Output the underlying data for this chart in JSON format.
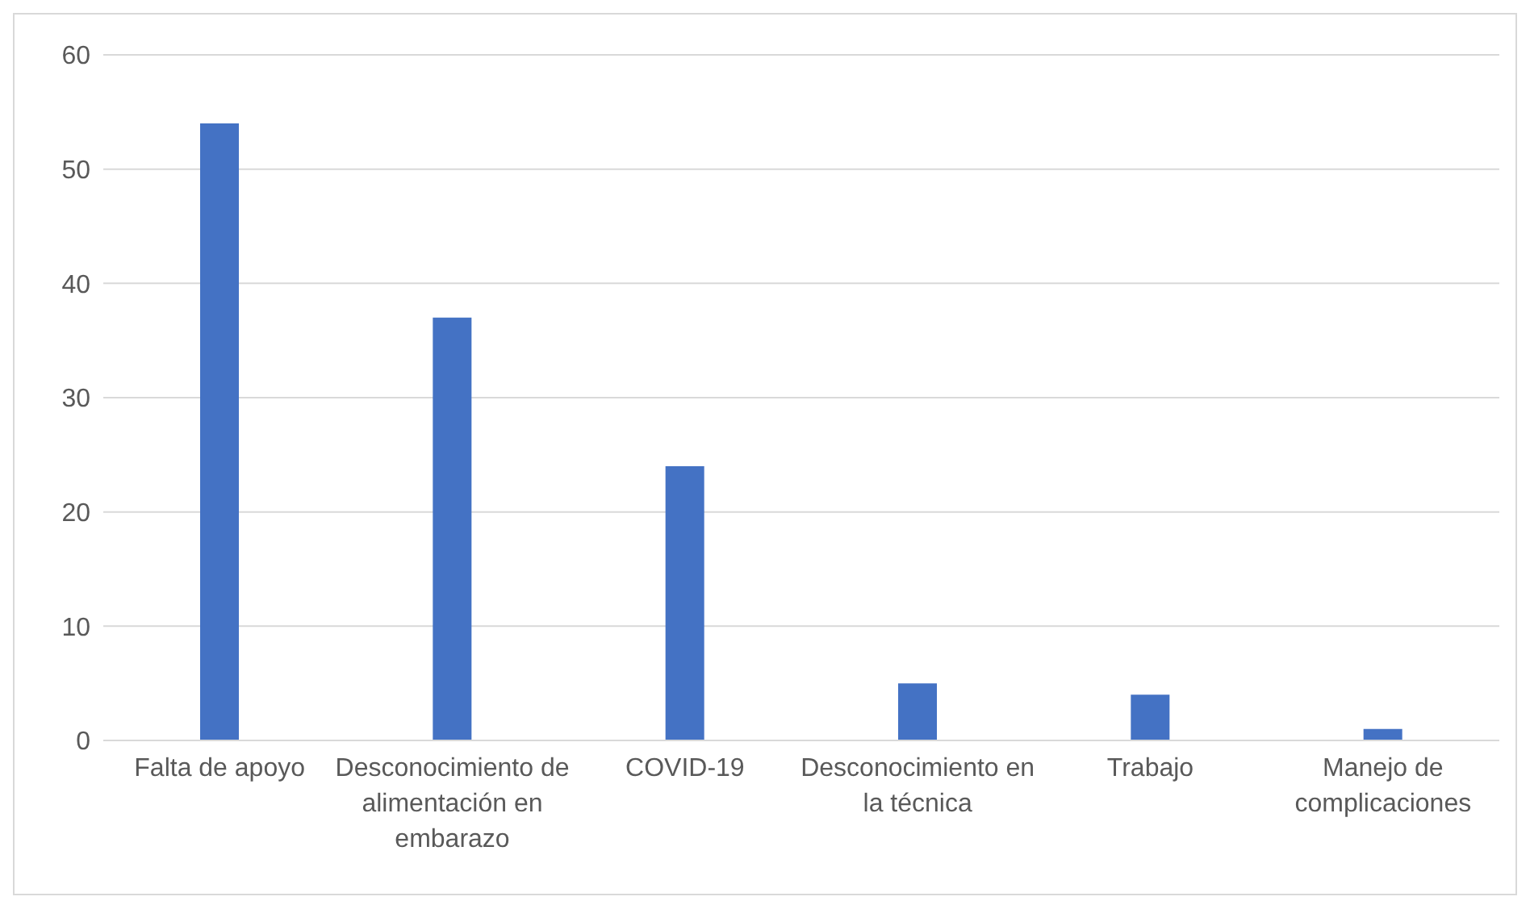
{
  "chart_data": {
    "type": "bar",
    "categories": [
      "Falta de apoyo",
      "Desconocimiento de alimentación en embarazo",
      "COVID-19",
      "Desconocimiento en la técnica",
      "Trabajo",
      "Manejo de complicaciones"
    ],
    "values": [
      54,
      37,
      24,
      5,
      4,
      1
    ],
    "color": "#4472c4",
    "ylim": [
      0,
      60
    ],
    "yticks": [
      0,
      10,
      20,
      30,
      40,
      50,
      60
    ],
    "grid": "y",
    "legend": false
  }
}
